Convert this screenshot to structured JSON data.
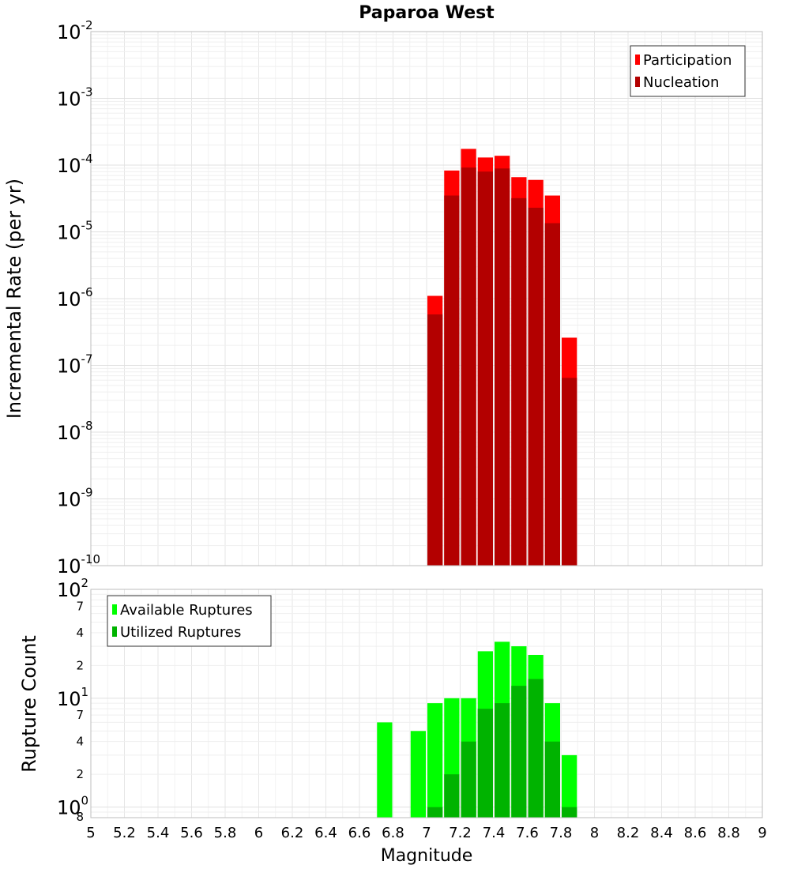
{
  "chart_data": [
    {
      "type": "bar",
      "title": "Paparoa West",
      "ylabel": "Incremental Rate (per yr)",
      "xlabel": "",
      "xlim": [
        5,
        9
      ],
      "ylim": [
        1e-10,
        0.01
      ],
      "yscale": "log",
      "grid": true,
      "legend_position": "top-right",
      "bar_width": 0.1,
      "y_tick_exponents": [
        -2,
        -3,
        -4,
        -5,
        -6,
        -7,
        -8,
        -9,
        -10
      ],
      "series": [
        {
          "name": "Participation",
          "color": "#ff0000",
          "x": [
            7.05,
            7.15,
            7.25,
            7.35,
            7.45,
            7.55,
            7.65,
            7.75,
            7.85
          ],
          "values": [
            1.1e-06,
            8.3e-05,
            0.000175,
            0.00013,
            0.000138,
            6.6e-05,
            6e-05,
            3.5e-05,
            2.6e-07
          ]
        },
        {
          "name": "Nucleation",
          "color": "#b30000",
          "x": [
            7.05,
            7.15,
            7.25,
            7.35,
            7.45,
            7.55,
            7.65,
            7.75,
            7.85
          ],
          "values": [
            5.8e-07,
            3.5e-05,
            9.2e-05,
            8e-05,
            8.9e-05,
            3.2e-05,
            2.3e-05,
            1.35e-05,
            6.5e-08
          ]
        }
      ]
    },
    {
      "type": "bar",
      "title": "",
      "ylabel": "Rupture Count",
      "xlabel": "Magnitude",
      "xlim": [
        5,
        9
      ],
      "ylim": [
        0.8,
        100
      ],
      "yscale": "log",
      "grid": true,
      "legend_position": "top-left",
      "bar_width": 0.1,
      "x_ticks": [
        5,
        5.2,
        5.4,
        5.6,
        5.8,
        6,
        6.2,
        6.4,
        6.6,
        6.8,
        7,
        7.2,
        7.4,
        7.6,
        7.8,
        8,
        8.2,
        8.4,
        8.6,
        8.8,
        9
      ],
      "x_tick_labels": [
        "5",
        "5.2",
        "5.4",
        "5.6",
        "5.8",
        "6",
        "6.2",
        "6.4",
        "6.6",
        "6.8",
        "7",
        "7.2",
        "7.4",
        "7.6",
        "7.8",
        "8",
        "8.2",
        "8.4",
        "8.6",
        "8.8",
        "9"
      ],
      "y_major_ticks": [
        {
          "value": 100,
          "base": "10",
          "exp": "2"
        },
        {
          "value": 10,
          "base": "10",
          "exp": "1"
        },
        {
          "value": 1,
          "base": "10",
          "exp": "0"
        }
      ],
      "y_minor_ticks": [
        {
          "value": 70,
          "label": "7"
        },
        {
          "value": 40,
          "label": "4"
        },
        {
          "value": 20,
          "label": "2"
        },
        {
          "value": 7,
          "label": "7"
        },
        {
          "value": 4,
          "label": "4"
        },
        {
          "value": 2,
          "label": "2"
        },
        {
          "value": 0.8,
          "label": "8"
        }
      ],
      "series": [
        {
          "name": "Available Ruptures",
          "color": "#00ff00",
          "x": [
            6.75,
            6.95,
            7.05,
            7.15,
            7.25,
            7.35,
            7.45,
            7.55,
            7.65,
            7.75,
            7.85
          ],
          "values": [
            6,
            5,
            9,
            10,
            10,
            27,
            33,
            30,
            25,
            9,
            3
          ]
        },
        {
          "name": "Utilized Ruptures",
          "color": "#00b300",
          "x": [
            7.05,
            7.15,
            7.25,
            7.35,
            7.45,
            7.55,
            7.65,
            7.75,
            7.85
          ],
          "values": [
            1,
            2,
            4,
            8,
            9,
            13,
            15,
            4,
            1
          ]
        }
      ]
    }
  ]
}
